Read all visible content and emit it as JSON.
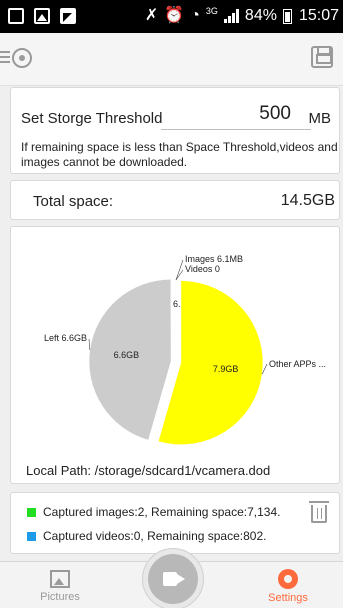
{
  "status_bar": {
    "battery": "84%",
    "time": "15:07",
    "network": "3G"
  },
  "threshold": {
    "label": "Set Storge Threshold",
    "value": "500",
    "unit": "MB",
    "note": "If remaining space is less than Space Threshold,videos and images cannot be downloaded."
  },
  "total": {
    "label": "Total space:",
    "value": "14.5GB"
  },
  "chart_data": {
    "type": "pie",
    "unit": "GB",
    "slices": [
      {
        "label": "Other APPs ...",
        "value_label": "7.9GB",
        "value": 7.9,
        "color": "#ffff00"
      },
      {
        "label": "Left 6.6GB",
        "value_label": "6.6GB",
        "value": 6.6,
        "color": "#cccccc"
      },
      {
        "label": "Images 6.1MB",
        "value": 0.0061,
        "color": "#00cc00"
      },
      {
        "label": "Videos 0",
        "value": 0,
        "color": "#1e90ff"
      }
    ],
    "center_fragment": "6."
  },
  "local_path": "Local Path:  /storage/sdcard1/vcamera.dod",
  "captured": {
    "images_text": "Captured images:2, Remaining space:7,134.",
    "videos_text": "Captured videos:0, Remaining space:802.",
    "images_color": "#22dd22",
    "videos_color": "#1e9be8"
  },
  "nav": {
    "pictures": "Pictures",
    "settings": "Settings"
  }
}
